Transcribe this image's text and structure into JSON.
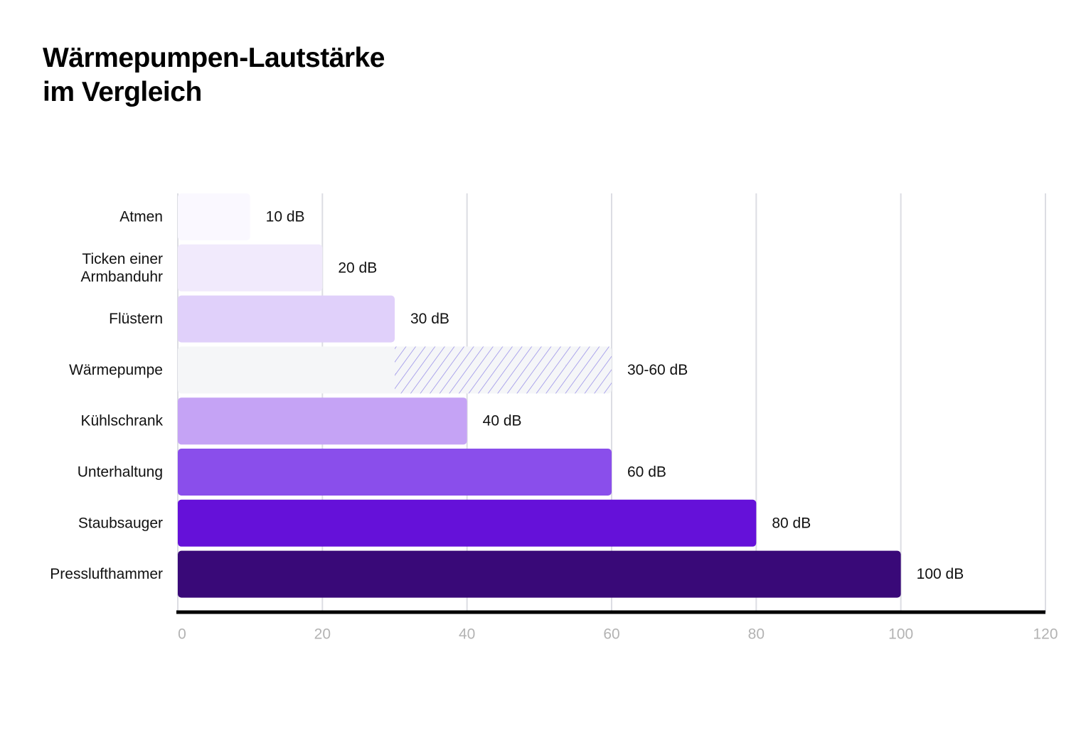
{
  "chart_data": {
    "type": "bar",
    "orientation": "horizontal",
    "title_lines": [
      "Wärmepumpen-Lautstärke",
      "im Vergleich"
    ],
    "categories": [
      [
        "Atmen"
      ],
      [
        "Ticken einer",
        "Armbanduhr"
      ],
      [
        "Flüstern"
      ],
      [
        "Wärmepumpe"
      ],
      [
        "Kühlschrank"
      ],
      [
        "Unterhaltung"
      ],
      [
        "Staubsauger"
      ],
      [
        "Presslufthammer"
      ]
    ],
    "bars": [
      {
        "start": 0,
        "end": 10,
        "label": "10 dB",
        "color": "#faf8ff"
      },
      {
        "start": 0,
        "end": 20,
        "label": "20 dB",
        "color": "#f1eafc"
      },
      {
        "start": 0,
        "end": 30,
        "label": "30 dB",
        "color": "#e0d0fa"
      },
      {
        "start": 0,
        "end": 60,
        "range_start": 30,
        "label": "30-60 dB",
        "color": "#f5f6f8",
        "hatch_color": "#8f85e6"
      },
      {
        "start": 0,
        "end": 40,
        "label": "40 dB",
        "color": "#c5a3f5"
      },
      {
        "start": 0,
        "end": 60,
        "label": "60 dB",
        "color": "#8a4eeb"
      },
      {
        "start": 0,
        "end": 80,
        "label": "80 dB",
        "color": "#6511d9"
      },
      {
        "start": 0,
        "end": 100,
        "label": "100 dB",
        "color": "#390978"
      }
    ],
    "xlim": [
      0,
      120
    ],
    "xticks": [
      0,
      20,
      40,
      60,
      80,
      100,
      120
    ],
    "xtick_labels": [
      "0",
      "20",
      "40",
      "60",
      "80",
      "100",
      "120"
    ],
    "grid": "vertical",
    "gridline_color": "#dcdde3",
    "axis_color": "#000000"
  }
}
